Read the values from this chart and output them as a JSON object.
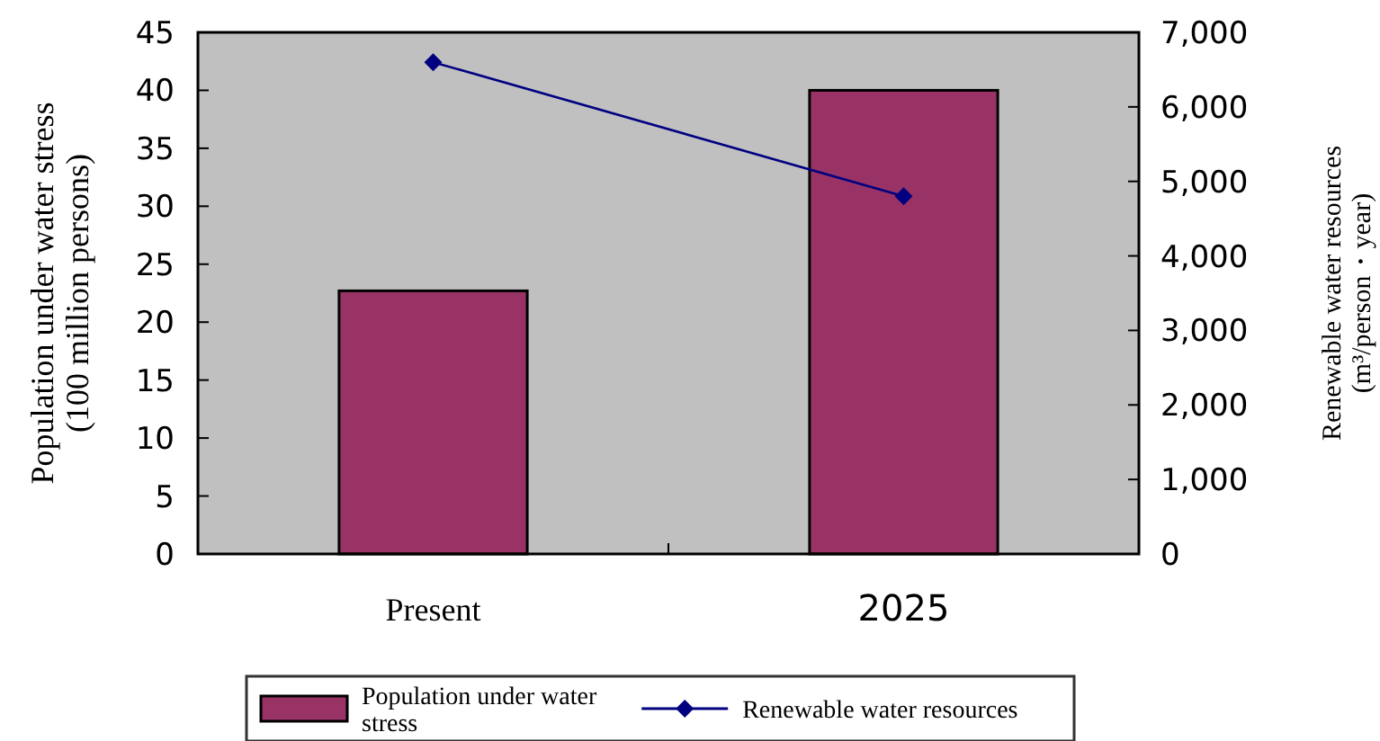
{
  "chart_data": {
    "type": "bar",
    "categories": [
      "Present",
      "2025"
    ],
    "ylabel": "Population under water stress\n(100 million persons)",
    "y2label": "Renewable water resources\n(m³/person・year)",
    "series": [
      {
        "name": "Population under water stress",
        "color": "#993366",
        "values": [
          22.7,
          40
        ]
      },
      {
        "name": "Renewable water resources",
        "type": "line",
        "axis": "y2",
        "color": "#000080",
        "values": [
          6600,
          4800
        ],
        "marker": "diamond"
      }
    ],
    "ylim": [
      0,
      45
    ],
    "yticks": [
      0,
      5,
      10,
      15,
      20,
      25,
      30,
      35,
      40,
      45
    ],
    "y2lim": [
      0,
      7000
    ],
    "y2ticks": [
      {
        "value": 0,
        "label": "0"
      },
      {
        "value": 1000,
        "label": "1,000"
      },
      {
        "value": 2000,
        "label": "2,000"
      },
      {
        "value": 3000,
        "label": "3,000"
      },
      {
        "value": 4000,
        "label": "4,000"
      },
      {
        "value": 5000,
        "label": "5,000"
      },
      {
        "value": 6000,
        "label": "6,000"
      },
      {
        "value": 7000,
        "label": "7,000"
      }
    ],
    "grid": false,
    "legend": "bottom"
  }
}
